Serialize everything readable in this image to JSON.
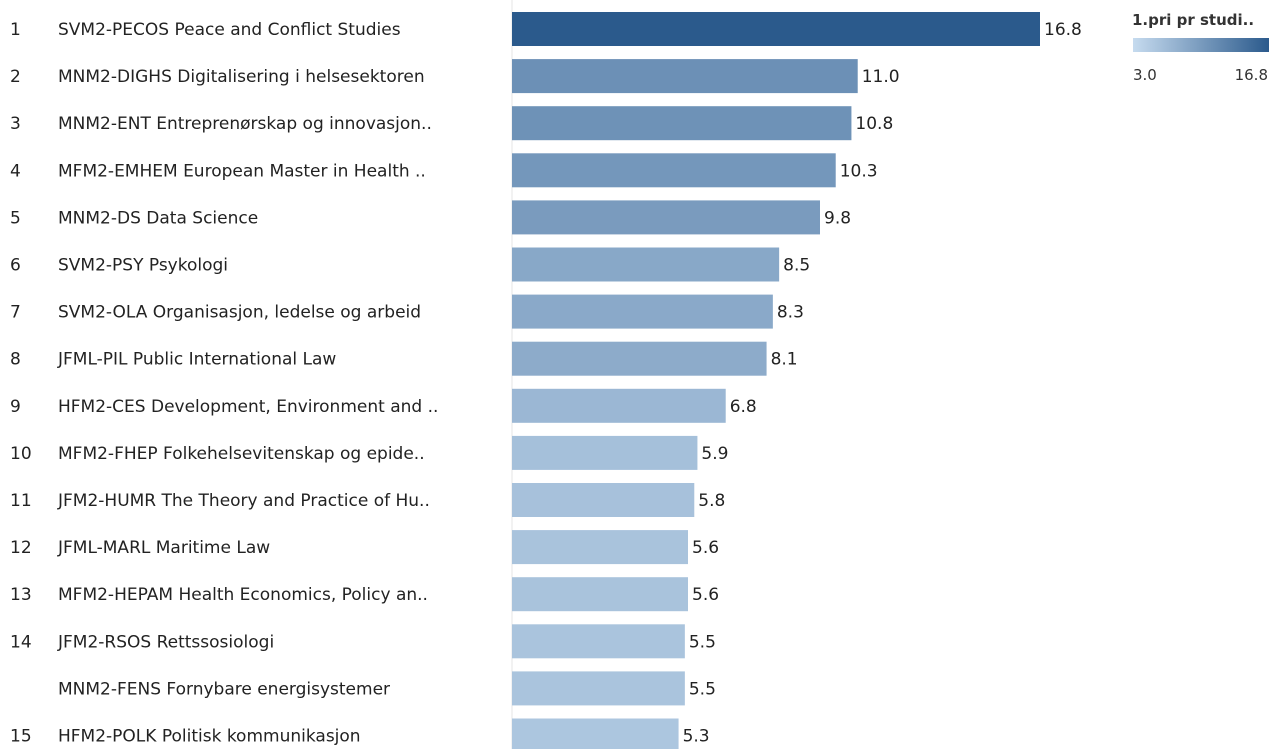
{
  "chart_data": {
    "type": "bar",
    "orientation": "horizontal",
    "rows": [
      {
        "rank": "1",
        "name": "SVM2-PECOS Peace and Conflict Studies",
        "value": 16.8,
        "value_label": "16.8"
      },
      {
        "rank": "2",
        "name": "MNM2-DIGHS Digitalisering i helsesektoren",
        "value": 11.0,
        "value_label": "11.0"
      },
      {
        "rank": "3",
        "name": "MNM2-ENT Entreprenørskap og innovasjon..",
        "value": 10.8,
        "value_label": "10.8"
      },
      {
        "rank": "4",
        "name": "MFM2-EMHEM European Master in Health ..",
        "value": 10.3,
        "value_label": "10.3"
      },
      {
        "rank": "5",
        "name": "MNM2-DS Data Science",
        "value": 9.8,
        "value_label": "9.8"
      },
      {
        "rank": "6",
        "name": "SVM2-PSY Psykologi",
        "value": 8.5,
        "value_label": "8.5"
      },
      {
        "rank": "7",
        "name": "SVM2-OLA Organisasjon, ledelse og arbeid",
        "value": 8.3,
        "value_label": "8.3"
      },
      {
        "rank": "8",
        "name": "JFML-PIL Public International Law",
        "value": 8.1,
        "value_label": "8.1"
      },
      {
        "rank": "9",
        "name": "HFM2-CES Development, Environment and ..",
        "value": 6.8,
        "value_label": "6.8"
      },
      {
        "rank": "10",
        "name": "MFM2-FHEP Folkehelsevitenskap og epide..",
        "value": 5.9,
        "value_label": "5.9"
      },
      {
        "rank": "11",
        "name": "JFM2-HUMR The Theory and Practice of Hu..",
        "value": 5.8,
        "value_label": "5.8"
      },
      {
        "rank": "12",
        "name": "JFML-MARL Maritime Law",
        "value": 5.6,
        "value_label": "5.6"
      },
      {
        "rank": "13",
        "name": "MFM2-HEPAM Health Economics, Policy an..",
        "value": 5.6,
        "value_label": "5.6"
      },
      {
        "rank": "14",
        "name": "JFM2-RSOS Rettssosiologi",
        "value": 5.5,
        "value_label": "5.5"
      },
      {
        "rank": "",
        "name": "MNM2-FENS Fornybare energisystemer",
        "value": 5.5,
        "value_label": "5.5"
      },
      {
        "rank": "15",
        "name": "HFM2-POLK Politisk kommunikasjon",
        "value": 5.3,
        "value_label": "5.3"
      }
    ],
    "color_legend": {
      "title": "1.pri pr studi..",
      "min_label": "3.0",
      "max_label": "16.8",
      "min": 3.0,
      "max": 16.8,
      "color_low": "#c6dbef",
      "color_high": "#2b5a8c"
    },
    "xlim": [
      0,
      16.8
    ]
  }
}
